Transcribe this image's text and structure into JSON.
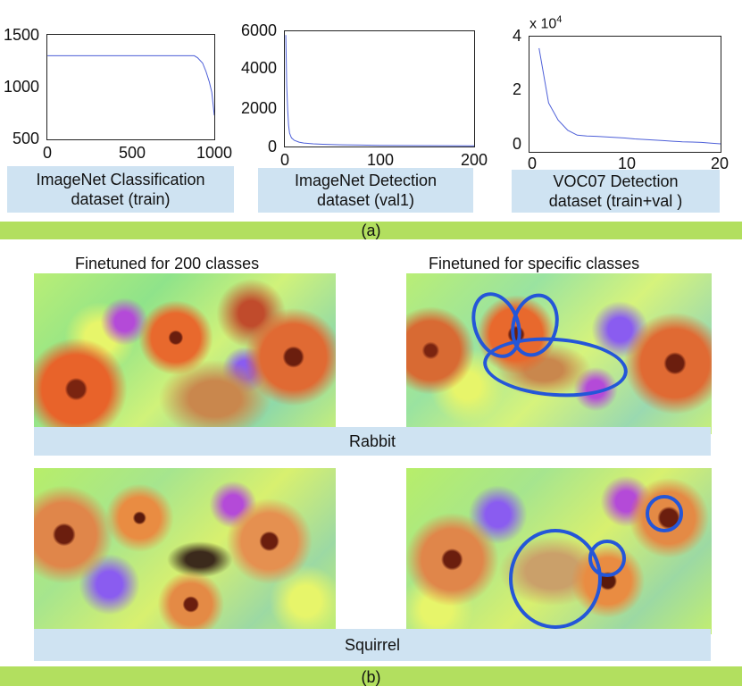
{
  "panel_a_label": "(a)",
  "panel_b_label": "(b)",
  "chart_data": [
    {
      "type": "line",
      "caption": "ImageNet Classification\ndataset (train)",
      "xlim": [
        0,
        1000
      ],
      "ylim": [
        500,
        1500
      ],
      "xticks": [
        "0",
        "500",
        "1000"
      ],
      "yticks": [
        "1500",
        "1000",
        "500"
      ],
      "x": [
        1,
        100,
        200,
        300,
        400,
        500,
        600,
        700,
        800,
        880,
        900,
        930,
        950,
        970,
        985,
        1000
      ],
      "y": [
        1300,
        1300,
        1300,
        1300,
        1300,
        1300,
        1300,
        1300,
        1300,
        1300,
        1280,
        1230,
        1150,
        1050,
        950,
        730
      ],
      "color": "#4d5fd8"
    },
    {
      "type": "line",
      "caption": "ImageNet Detection\ndataset (val1)",
      "xlim": [
        0,
        200
      ],
      "ylim": [
        0,
        6000
      ],
      "xticks": [
        "0",
        "100",
        "200"
      ],
      "yticks": [
        "6000",
        "4000",
        "2000",
        "0"
      ],
      "x": [
        1,
        2,
        3,
        4,
        5,
        7,
        10,
        15,
        20,
        30,
        40,
        60,
        80,
        100,
        150,
        200
      ],
      "y": [
        5800,
        3200,
        1900,
        1100,
        700,
        450,
        320,
        230,
        180,
        140,
        115,
        90,
        75,
        62,
        45,
        35
      ],
      "color": "#4d5fd8"
    },
    {
      "type": "line",
      "caption": "VOC07 Detection\ndataset (train+val )",
      "exponent_label": "x 10",
      "exponent_power": "4",
      "xlim": [
        0,
        20
      ],
      "ylim": [
        0,
        4
      ],
      "xticks": [
        "0",
        "10",
        "20"
      ],
      "yticks": [
        "4",
        "2",
        "0"
      ],
      "x": [
        1,
        2,
        3,
        4,
        5,
        6,
        7,
        8,
        9,
        10,
        11,
        12,
        13,
        14,
        15,
        16,
        17,
        18,
        19,
        20
      ],
      "y": [
        3.6,
        1.7,
        1.1,
        0.75,
        0.58,
        0.55,
        0.54,
        0.52,
        0.5,
        0.48,
        0.45,
        0.43,
        0.41,
        0.39,
        0.37,
        0.35,
        0.34,
        0.33,
        0.3,
        0.28
      ],
      "color": "#4d5fd8"
    }
  ],
  "panel_b": {
    "col_left_title": "Finetuned for 200 classes",
    "col_right_title": "Finetuned for specific classes",
    "rows": [
      {
        "label": "Rabbit"
      },
      {
        "label": "Squirrel"
      }
    ],
    "highlight_color": "#2456d8"
  }
}
